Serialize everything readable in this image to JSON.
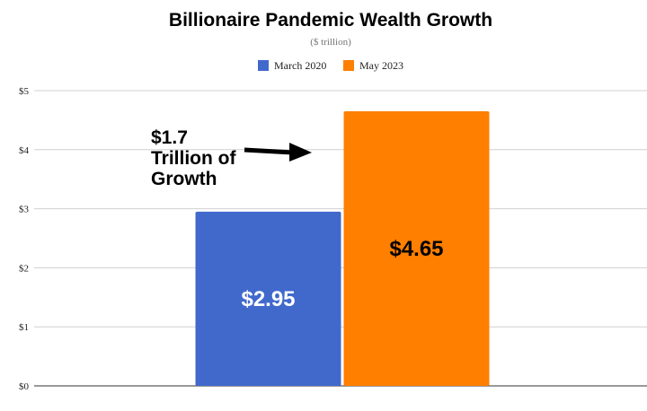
{
  "chart_data": {
    "type": "bar",
    "title": "Billionaire Pandemic Wealth Growth",
    "subtitle": "($ trillion)",
    "categories": [
      ""
    ],
    "series": [
      {
        "name": "March 2020",
        "values": [
          2.95
        ],
        "color": "#4169cc",
        "label": "$2.95",
        "label_color": "#ffffff"
      },
      {
        "name": "May 2023",
        "values": [
          4.65
        ],
        "color": "#ff7f00",
        "label": "$4.65",
        "label_color": "#000000"
      }
    ],
    "ylim": [
      0,
      5
    ],
    "yticks": [
      {
        "value": 0,
        "label": "$0"
      },
      {
        "value": 1,
        "label": "$1"
      },
      {
        "value": 2,
        "label": "$2"
      },
      {
        "value": 3,
        "label": "$3"
      },
      {
        "value": 4,
        "label": "$4"
      },
      {
        "value": 5,
        "label": "$5"
      }
    ],
    "grid": true,
    "legend_position": "top-center",
    "annotation": {
      "lines": [
        "$1.7",
        "Trillion of",
        "Growth"
      ],
      "arrow": "right"
    }
  }
}
